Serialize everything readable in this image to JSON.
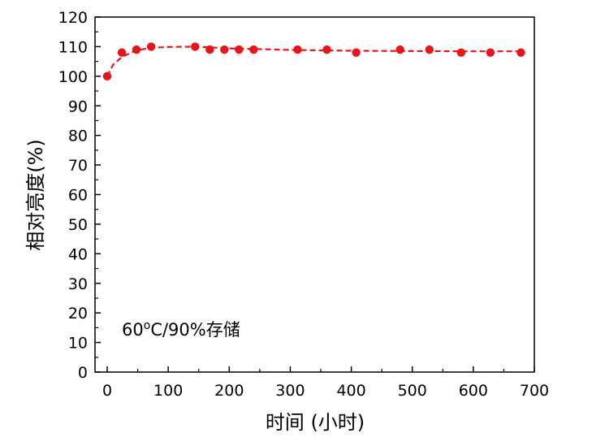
{
  "chart_data": {
    "type": "line",
    "xlabel": "时间 (小时)",
    "ylabel": "相对亮度(%)",
    "xlim": [
      -20,
      700
    ],
    "ylim": [
      0,
      120
    ],
    "xticks": [
      0,
      100,
      200,
      300,
      400,
      500,
      600,
      700
    ],
    "yticks": [
      0,
      10,
      20,
      30,
      40,
      50,
      60,
      70,
      80,
      90,
      100,
      110,
      120
    ],
    "annotation": {
      "prefix": "60",
      "superscript": "o",
      "suffix": "C/90%存储"
    },
    "series": [
      {
        "color": "#e8141b",
        "marker": "circle",
        "line_style": "dashed",
        "points": [
          {
            "x": 0,
            "y": 100
          },
          {
            "x": 24,
            "y": 108
          },
          {
            "x": 48,
            "y": 109
          },
          {
            "x": 72,
            "y": 110
          },
          {
            "x": 144,
            "y": 110
          },
          {
            "x": 168,
            "y": 109
          },
          {
            "x": 192,
            "y": 109
          },
          {
            "x": 216,
            "y": 109
          },
          {
            "x": 240,
            "y": 109
          },
          {
            "x": 312,
            "y": 109
          },
          {
            "x": 360,
            "y": 109
          },
          {
            "x": 408,
            "y": 108
          },
          {
            "x": 480,
            "y": 109
          },
          {
            "x": 528,
            "y": 109
          },
          {
            "x": 580,
            "y": 108
          },
          {
            "x": 628,
            "y": 108
          },
          {
            "x": 678,
            "y": 108
          }
        ],
        "fit_curve": [
          {
            "x": 0,
            "y": 100
          },
          {
            "x": 10,
            "y": 104
          },
          {
            "x": 24,
            "y": 106.5
          },
          {
            "x": 48,
            "y": 108.8
          },
          {
            "x": 72,
            "y": 109.6
          },
          {
            "x": 100,
            "y": 109.9
          },
          {
            "x": 144,
            "y": 110
          },
          {
            "x": 200,
            "y": 109.4
          },
          {
            "x": 300,
            "y": 108.9
          },
          {
            "x": 400,
            "y": 108.6
          },
          {
            "x": 500,
            "y": 108.5
          },
          {
            "x": 600,
            "y": 108.4
          },
          {
            "x": 678,
            "y": 108.4
          }
        ]
      }
    ]
  }
}
